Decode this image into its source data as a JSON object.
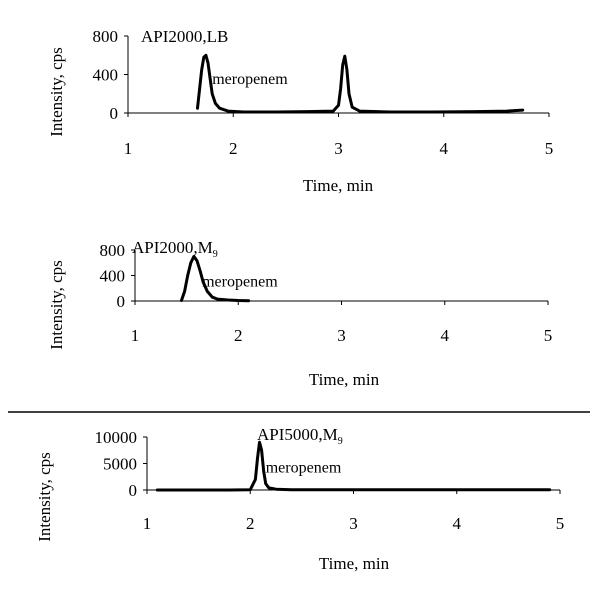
{
  "chart_data": [
    {
      "type": "line",
      "title": "API2000,LB",
      "xlabel": "Time, min",
      "ylabel": "Intensity, cps",
      "xlim": [
        1,
        5
      ],
      "ylim": [
        0,
        800
      ],
      "xticks": [
        "1",
        "2",
        "3",
        "4",
        "5"
      ],
      "yticks": [
        "0",
        "400",
        "800"
      ],
      "annotation": {
        "text": "meropenem",
        "x": 1.8,
        "y": 300
      },
      "series": [
        {
          "x": [
            1.66,
            1.68,
            1.7,
            1.72,
            1.74,
            1.76,
            1.78,
            1.8,
            1.83,
            1.87,
            1.95,
            2.1,
            2.4,
            2.7,
            2.95,
            3.0,
            3.02,
            3.04,
            3.06,
            3.08,
            3.1,
            3.13,
            3.2,
            3.5,
            3.9,
            4.3,
            4.6,
            4.75
          ],
          "y": [
            50,
            250,
            450,
            580,
            600,
            520,
            360,
            200,
            100,
            50,
            20,
            10,
            10,
            15,
            20,
            80,
            250,
            500,
            590,
            450,
            200,
            60,
            20,
            10,
            10,
            15,
            20,
            30
          ]
        }
      ]
    },
    {
      "type": "line",
      "title": "API2000,M",
      "title_sub": "9",
      "xlabel": "Time, min",
      "ylabel": "Intensity, cps",
      "xlim": [
        1,
        5
      ],
      "ylim": [
        0,
        800
      ],
      "xticks": [
        "1",
        "2",
        "3",
        "4",
        "5"
      ],
      "yticks": [
        "0",
        "400",
        "800"
      ],
      "annotation": {
        "text": "meropenem",
        "x": 1.65,
        "y": 230
      },
      "series": [
        {
          "x": [
            1.45,
            1.48,
            1.51,
            1.54,
            1.57,
            1.6,
            1.63,
            1.66,
            1.7,
            1.75,
            1.8,
            1.9,
            2.0,
            2.1
          ],
          "y": [
            10,
            150,
            400,
            600,
            700,
            630,
            480,
            300,
            150,
            60,
            30,
            15,
            8,
            5
          ]
        }
      ]
    },
    {
      "type": "line",
      "title": "API5000,M",
      "title_sub": "9",
      "xlabel": "Time, min",
      "ylabel": "Intensity, cps",
      "xlim": [
        1,
        5
      ],
      "ylim": [
        0,
        10000
      ],
      "xticks": [
        "1",
        "2",
        "3",
        "4",
        "5"
      ],
      "yticks": [
        "0",
        "5000",
        "10000"
      ],
      "annotation": {
        "text": "meropenem",
        "x": 2.15,
        "y": 3300
      },
      "series": [
        {
          "x": [
            1.1,
            1.8,
            2.0,
            2.05,
            2.07,
            2.09,
            2.11,
            2.13,
            2.15,
            2.18,
            2.25,
            2.4,
            2.7,
            3.0,
            3.5,
            4.0,
            4.5,
            4.9
          ],
          "y": [
            0,
            0,
            50,
            2000,
            6000,
            9000,
            7500,
            3500,
            1200,
            400,
            150,
            60,
            40,
            30,
            30,
            60,
            40,
            30
          ]
        }
      ]
    }
  ]
}
